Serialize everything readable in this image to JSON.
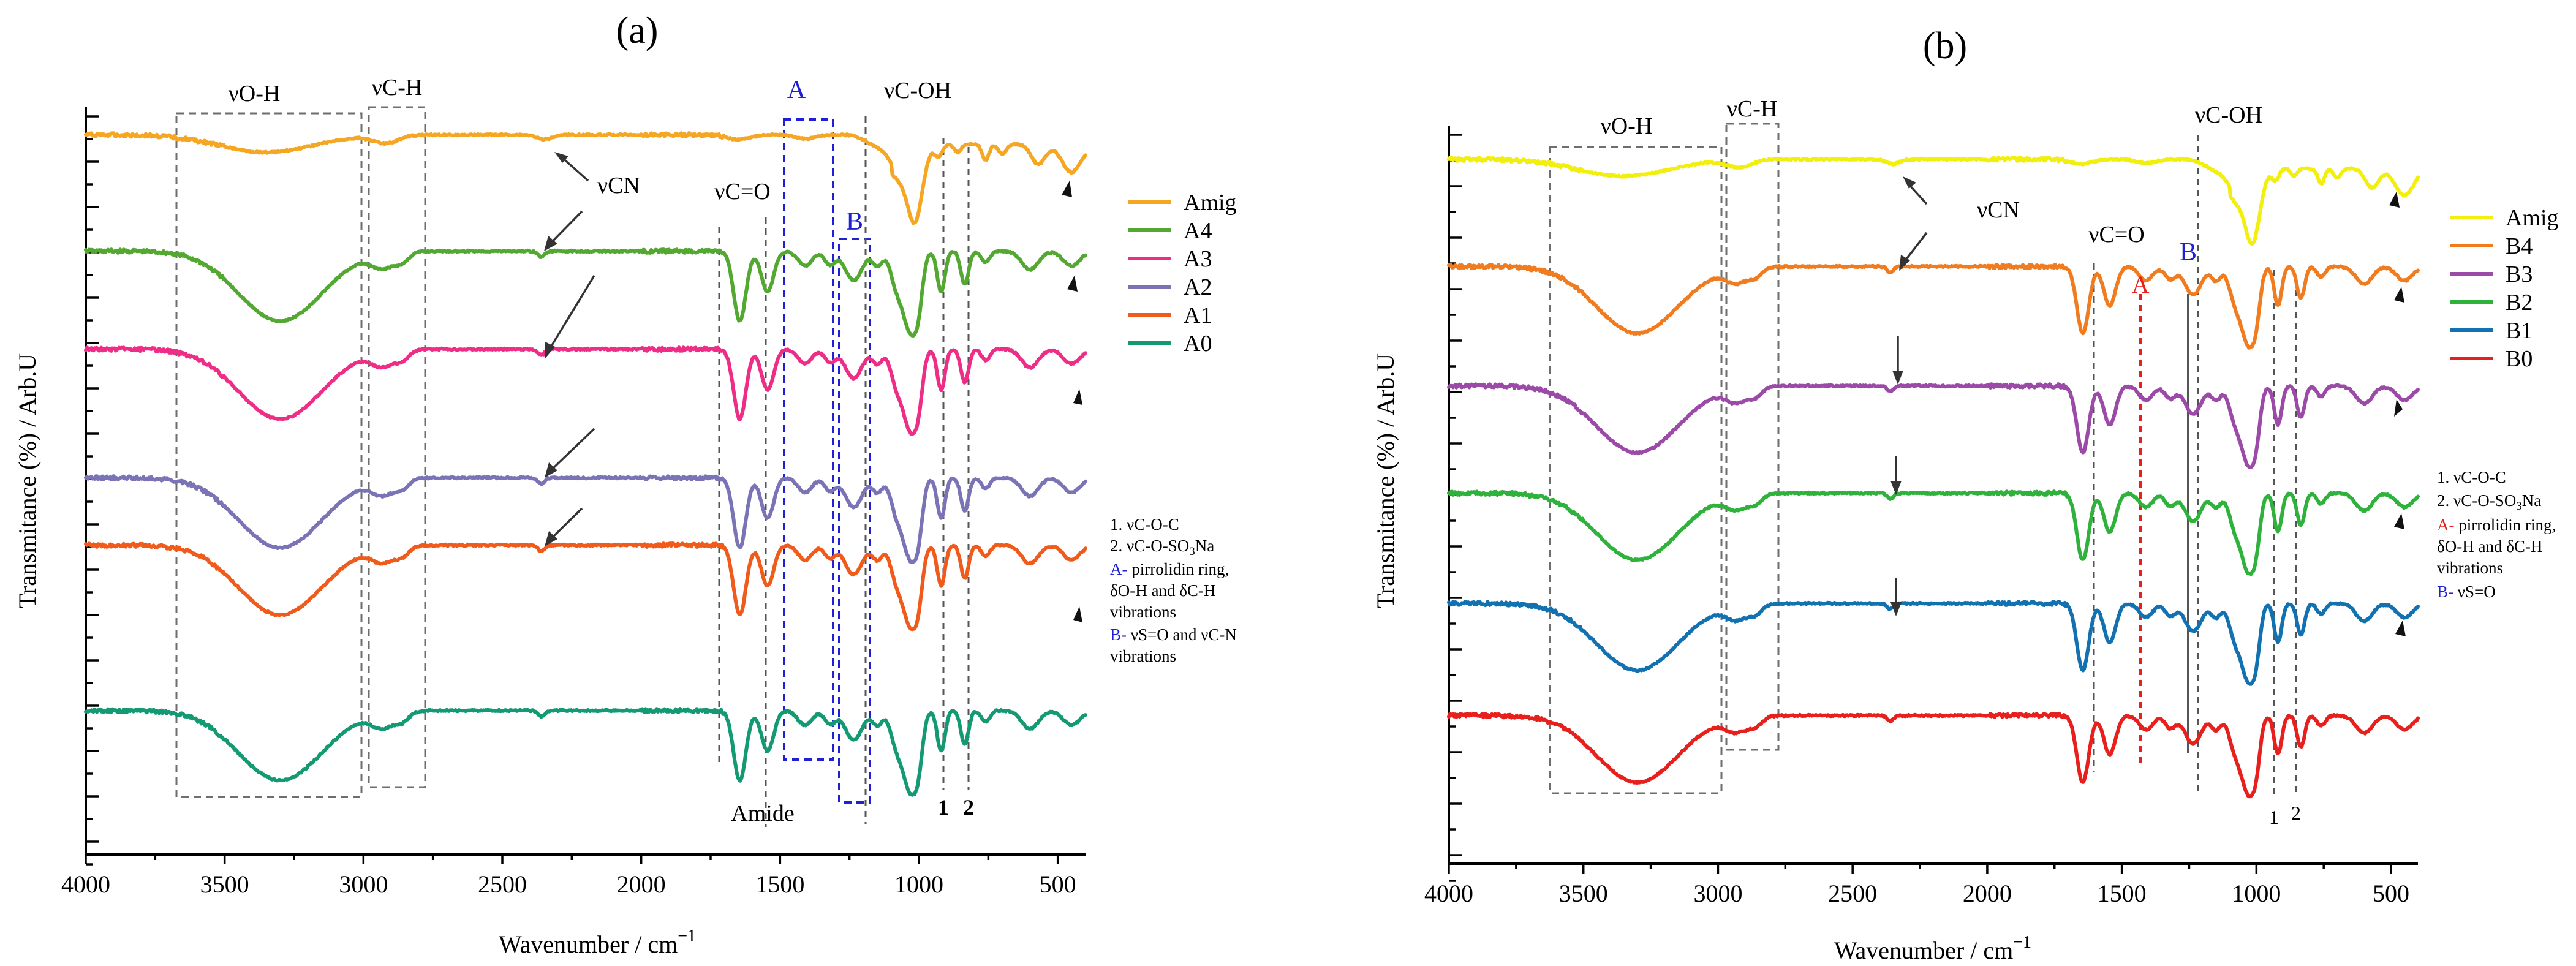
{
  "chart_data": [
    {
      "panel_id": "a",
      "type": "line",
      "panel_label": "(a)",
      "xlabel": "Wavenumber / cm",
      "xlabel_sup": "−1",
      "ylabel": "Transmitance (%) / Arb.U",
      "xlim": [
        4000,
        400
      ],
      "xticks": [
        "4000",
        "3500",
        "3000",
        "2500",
        "2000",
        "1500",
        "1000",
        "500"
      ],
      "series": [
        {
          "name": "Amig",
          "color": "#f5a623"
        },
        {
          "name": "A4",
          "color": "#52a830"
        },
        {
          "name": "A3",
          "color": "#ee2d86"
        },
        {
          "name": "A2",
          "color": "#7a74b6"
        },
        {
          "name": "A1",
          "color": "#f05a1a"
        },
        {
          "name": "A0",
          "color": "#139a73"
        }
      ],
      "band_labels": {
        "oh": "νO-H",
        "ch": "νC-H",
        "coh": "νC-OH",
        "co": "νC=O",
        "cn": "νCN",
        "amide": "Amide",
        "region_a": "A",
        "region_b": "B",
        "peak_1": "1",
        "peak_2": "2"
      },
      "legend_notes": [
        "1. νC-O-C",
        "2. νC-O-SO3Na",
        "A- pirrolidin ring,",
        "δO-H and δC-H",
        " vibrations",
        "B- νS=O and νC-N",
        "vibrations"
      ]
    },
    {
      "panel_id": "b",
      "type": "line",
      "panel_label": "(b)",
      "xlabel": "Wavenumber / cm",
      "xlabel_sup": "−1",
      "ylabel": "Transmitance (%) / Arb.U",
      "xlim": [
        4000,
        400
      ],
      "xticks": [
        "4000",
        "3500",
        "3000",
        "2500",
        "2000",
        "1500",
        "1000",
        "500"
      ],
      "series": [
        {
          "name": "Amig",
          "color": "#f2ee0d"
        },
        {
          "name": "B4",
          "color": "#f07c1f"
        },
        {
          "name": "B3",
          "color": "#9b4aa7"
        },
        {
          "name": "B2",
          "color": "#2fb23b"
        },
        {
          "name": "B1",
          "color": "#1271b0"
        },
        {
          "name": "B0",
          "color": "#e8201d"
        }
      ],
      "band_labels": {
        "oh": "νO-H",
        "ch": "νC-H",
        "coh": "νC-OH",
        "co": "νC=O",
        "cn": "νCN",
        "region_a": "A",
        "region_b": "B",
        "peak_1": "1",
        "peak_2": "2"
      },
      "legend_notes": [
        "1. νC-O-C",
        "2. νC-O-SO3Na",
        "A- pirrolidin ring,",
        "δO-H and δC-H",
        " vibrations",
        "B- νS=O"
      ]
    }
  ]
}
